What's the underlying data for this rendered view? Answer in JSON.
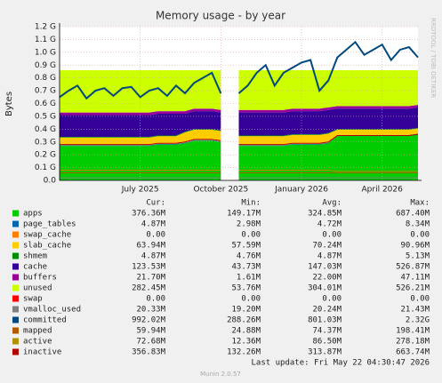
{
  "chart_data": {
    "type": "stacked-area",
    "title": "Memory usage - by year",
    "y_label": "Bytes",
    "watermark": "RRDTOOL / TOBI OETIKER",
    "ylim": [
      0,
      1.2
    ],
    "yticks": [
      {
        "value": 0,
        "label": "0.0"
      },
      {
        "value": 0.1,
        "label": "0.1 G"
      },
      {
        "value": 0.2,
        "label": "0.2 G"
      },
      {
        "value": 0.3,
        "label": "0.3 G"
      },
      {
        "value": 0.4,
        "label": "0.4 G"
      },
      {
        "value": 0.5,
        "label": "0.5 G"
      },
      {
        "value": 0.6,
        "label": "0.6 G"
      },
      {
        "value": 0.7,
        "label": "0.7 G"
      },
      {
        "value": 0.8,
        "label": "0.8 G"
      },
      {
        "value": 0.9,
        "label": "0.9 G"
      },
      {
        "value": 1.0,
        "label": "1.0 G"
      },
      {
        "value": 1.1,
        "label": "1.1 G"
      },
      {
        "value": 1.2,
        "label": "1.2 G"
      }
    ],
    "grid": true,
    "categories": [
      null,
      null,
      null,
      null,
      null,
      null,
      null,
      null,
      null,
      "July 2025",
      null,
      null,
      null,
      null,
      null,
      null,
      null,
      null,
      "October 2025",
      null,
      null,
      null,
      null,
      null,
      null,
      null,
      null,
      "January 2026",
      null,
      null,
      null,
      null,
      null,
      null,
      null,
      null,
      "April 2026",
      null,
      null,
      null,
      null
    ],
    "series": [
      {
        "name": "apps",
        "color": "#00cc00",
        "kind": "area",
        "values": [
          0.27,
          0.27,
          0.27,
          0.27,
          0.27,
          0.27,
          0.27,
          0.27,
          0.27,
          0.27,
          0.27,
          0.28,
          0.28,
          0.28,
          0.29,
          0.31,
          0.31,
          0.31,
          0.3,
          null,
          0.27,
          0.27,
          0.27,
          0.27,
          0.27,
          0.27,
          0.28,
          0.28,
          0.28,
          0.28,
          0.29,
          0.35,
          0.35,
          0.35,
          0.35,
          0.35,
          0.35,
          0.35,
          0.35,
          0.35,
          0.36
        ]
      },
      {
        "name": "page_tables",
        "color": "#0066b3",
        "kind": "area",
        "values": [
          0.005,
          0.005,
          0.005,
          0.005,
          0.005,
          0.005,
          0.005,
          0.005,
          0.005,
          0.005,
          0.005,
          0.005,
          0.005,
          0.005,
          0.005,
          0.005,
          0.005,
          0.005,
          0.005,
          null,
          0.005,
          0.005,
          0.005,
          0.005,
          0.005,
          0.005,
          0.005,
          0.005,
          0.005,
          0.005,
          0.005,
          0.005,
          0.005,
          0.005,
          0.005,
          0.005,
          0.005,
          0.005,
          0.005,
          0.005,
          0.005
        ]
      },
      {
        "name": "swap_cache",
        "color": "#ff8000",
        "kind": "area",
        "values": [
          0,
          0,
          0,
          0,
          0,
          0,
          0,
          0,
          0,
          0,
          0,
          0,
          0,
          0,
          0,
          0,
          0,
          0,
          0,
          null,
          0,
          0,
          0,
          0,
          0,
          0,
          0,
          0,
          0,
          0,
          0,
          0,
          0,
          0,
          0,
          0,
          0,
          0,
          0,
          0,
          0
        ]
      },
      {
        "name": "slab_cache",
        "color": "#ffcc00",
        "kind": "area",
        "values": [
          0.06,
          0.06,
          0.06,
          0.06,
          0.06,
          0.06,
          0.06,
          0.06,
          0.06,
          0.06,
          0.06,
          0.06,
          0.06,
          0.06,
          0.08,
          0.08,
          0.08,
          0.08,
          0.08,
          null,
          0.07,
          0.07,
          0.07,
          0.07,
          0.07,
          0.07,
          0.07,
          0.07,
          0.07,
          0.07,
          0.07,
          0.04,
          0.04,
          0.04,
          0.04,
          0.04,
          0.04,
          0.04,
          0.04,
          0.04,
          0.04
        ]
      },
      {
        "name": "shmem",
        "color": "#008f00",
        "kind": "area",
        "values": [
          0.005,
          0.005,
          0.005,
          0.005,
          0.005,
          0.005,
          0.005,
          0.005,
          0.005,
          0.005,
          0.005,
          0.005,
          0.005,
          0.005,
          0.005,
          0.005,
          0.005,
          0.005,
          0.005,
          null,
          0.005,
          0.005,
          0.005,
          0.005,
          0.005,
          0.005,
          0.005,
          0.005,
          0.005,
          0.005,
          0.005,
          0.005,
          0.005,
          0.005,
          0.005,
          0.005,
          0.005,
          0.005,
          0.005,
          0.005,
          0.005
        ]
      },
      {
        "name": "cache",
        "color": "#330099",
        "kind": "area",
        "values": [
          0.17,
          0.17,
          0.17,
          0.17,
          0.17,
          0.17,
          0.17,
          0.17,
          0.17,
          0.17,
          0.17,
          0.17,
          0.17,
          0.17,
          0.14,
          0.14,
          0.14,
          0.14,
          0.14,
          null,
          0.18,
          0.18,
          0.18,
          0.18,
          0.18,
          0.18,
          0.18,
          0.18,
          0.18,
          0.18,
          0.18,
          0.16,
          0.16,
          0.16,
          0.16,
          0.16,
          0.16,
          0.16,
          0.16,
          0.16,
          0.16
        ]
      },
      {
        "name": "buffers",
        "color": "#990099",
        "kind": "area",
        "values": [
          0.02,
          0.02,
          0.02,
          0.02,
          0.02,
          0.02,
          0.02,
          0.02,
          0.02,
          0.02,
          0.02,
          0.02,
          0.02,
          0.02,
          0.02,
          0.02,
          0.02,
          0.02,
          0.02,
          null,
          0.02,
          0.02,
          0.02,
          0.02,
          0.02,
          0.02,
          0.02,
          0.02,
          0.02,
          0.02,
          0.02,
          0.02,
          0.02,
          0.02,
          0.02,
          0.02,
          0.02,
          0.02,
          0.02,
          0.02,
          0.02
        ]
      },
      {
        "name": "unused",
        "color": "#ccff00",
        "kind": "area",
        "values": [
          0.33,
          0.33,
          0.33,
          0.33,
          0.33,
          0.33,
          0.33,
          0.33,
          0.33,
          0.33,
          0.33,
          0.32,
          0.32,
          0.32,
          0.32,
          0.3,
          0.3,
          0.3,
          0.31,
          null,
          0.31,
          0.31,
          0.31,
          0.31,
          0.31,
          0.31,
          0.3,
          0.3,
          0.3,
          0.3,
          0.29,
          0.28,
          0.28,
          0.28,
          0.28,
          0.28,
          0.28,
          0.28,
          0.28,
          0.28,
          0.27
        ]
      },
      {
        "name": "swap",
        "color": "#ff0000",
        "kind": "area",
        "values": [
          0,
          0,
          0,
          0,
          0,
          0,
          0,
          0,
          0,
          0,
          0,
          0,
          0,
          0,
          0,
          0,
          0,
          0,
          0,
          null,
          0,
          0,
          0,
          0,
          0,
          0,
          0,
          0,
          0,
          0,
          0,
          0,
          0,
          0,
          0,
          0,
          0,
          0,
          0,
          0,
          0
        ]
      },
      {
        "name": "vmalloc_used",
        "color": "#808080",
        "kind": "line",
        "values": [
          0.02,
          0.02,
          0.02,
          0.02,
          0.02,
          0.02,
          0.02,
          0.02,
          0.02,
          0.02,
          0.02,
          0.02,
          0.02,
          0.02,
          0.02,
          0.02,
          0.02,
          0.02,
          0.02,
          null,
          0.02,
          0.02,
          0.02,
          0.02,
          0.02,
          0.02,
          0.02,
          0.02,
          0.02,
          0.02,
          0.02,
          0.02,
          0.02,
          0.02,
          0.02,
          0.02,
          0.02,
          0.02,
          0.02,
          0.02,
          0.02
        ]
      },
      {
        "name": "committed",
        "color": "#00487d",
        "kind": "line",
        "values": [
          0.65,
          0.7,
          0.74,
          0.64,
          0.7,
          0.72,
          0.66,
          0.72,
          0.73,
          0.65,
          0.7,
          0.72,
          0.66,
          0.74,
          0.68,
          0.76,
          0.8,
          0.84,
          0.68,
          null,
          0.68,
          0.74,
          0.84,
          0.9,
          0.74,
          0.84,
          0.88,
          0.92,
          0.94,
          0.7,
          0.78,
          0.96,
          1.02,
          1.08,
          0.98,
          1.02,
          1.06,
          0.94,
          1.02,
          1.04,
          0.96
        ]
      },
      {
        "name": "mapped",
        "color": "#b35a00",
        "kind": "line",
        "values": [
          0.06,
          0.06,
          0.06,
          0.06,
          0.06,
          0.06,
          0.06,
          0.06,
          0.06,
          0.06,
          0.06,
          0.06,
          0.06,
          0.06,
          0.06,
          0.06,
          0.06,
          0.06,
          0.06,
          null,
          0.06,
          0.06,
          0.06,
          0.06,
          0.06,
          0.06,
          0.06,
          0.06,
          0.06,
          0.06,
          0.06,
          0.06,
          0.06,
          0.06,
          0.06,
          0.06,
          0.06,
          0.06,
          0.06,
          0.06,
          0.06
        ]
      },
      {
        "name": "active",
        "color": "#b38f00",
        "kind": "line",
        "values": [
          0.08,
          0.08,
          0.08,
          0.08,
          0.08,
          0.08,
          0.08,
          0.08,
          0.08,
          0.08,
          0.08,
          0.08,
          0.08,
          0.08,
          0.08,
          0.08,
          0.08,
          0.08,
          0.08,
          null,
          0.08,
          0.08,
          0.08,
          0.08,
          0.08,
          0.08,
          0.08,
          0.08,
          0.08,
          0.08,
          0.08,
          0.07,
          0.07,
          0.07,
          0.07,
          0.07,
          0.07,
          0.07,
          0.07,
          0.07,
          0.07
        ]
      },
      {
        "name": "inactive",
        "color": "#b30000",
        "kind": "line",
        "values": [
          0.28,
          0.28,
          0.28,
          0.28,
          0.28,
          0.28,
          0.28,
          0.28,
          0.28,
          0.28,
          0.28,
          0.29,
          0.29,
          0.29,
          0.3,
          0.32,
          0.32,
          0.32,
          0.31,
          null,
          0.28,
          0.28,
          0.28,
          0.28,
          0.28,
          0.28,
          0.29,
          0.29,
          0.29,
          0.29,
          0.3,
          0.35,
          0.35,
          0.35,
          0.35,
          0.35,
          0.35,
          0.35,
          0.35,
          0.35,
          0.36
        ]
      }
    ]
  },
  "summary": {
    "columns": [
      "Cur:",
      "Min:",
      "Avg:",
      "Max:"
    ],
    "rows": [
      [
        "376.36M",
        "149.17M",
        "324.85M",
        "687.40M"
      ],
      [
        "4.87M",
        "2.98M",
        "4.72M",
        "8.34M"
      ],
      [
        "0.00",
        "0.00",
        "0.00",
        "0.00"
      ],
      [
        "63.94M",
        "57.59M",
        "70.24M",
        "90.96M"
      ],
      [
        "4.87M",
        "4.76M",
        "4.87M",
        "5.13M"
      ],
      [
        "123.53M",
        "43.73M",
        "147.03M",
        "526.87M"
      ],
      [
        "21.70M",
        "1.61M",
        "22.00M",
        "47.11M"
      ],
      [
        "282.45M",
        "53.76M",
        "304.01M",
        "526.21M"
      ],
      [
        "0.00",
        "0.00",
        "0.00",
        "0.00"
      ],
      [
        "20.33M",
        "19.20M",
        "20.24M",
        "21.43M"
      ],
      [
        "992.02M",
        "288.26M",
        "801.03M",
        "2.32G"
      ],
      [
        "59.94M",
        "24.88M",
        "74.37M",
        "198.41M"
      ],
      [
        "72.68M",
        "12.36M",
        "86.50M",
        "278.18M"
      ],
      [
        "356.83M",
        "132.26M",
        "313.87M",
        "663.74M"
      ]
    ]
  },
  "last_update": "Last update: Fri May 22 04:30:47 2026",
  "footer": "Munin 2.0.57"
}
